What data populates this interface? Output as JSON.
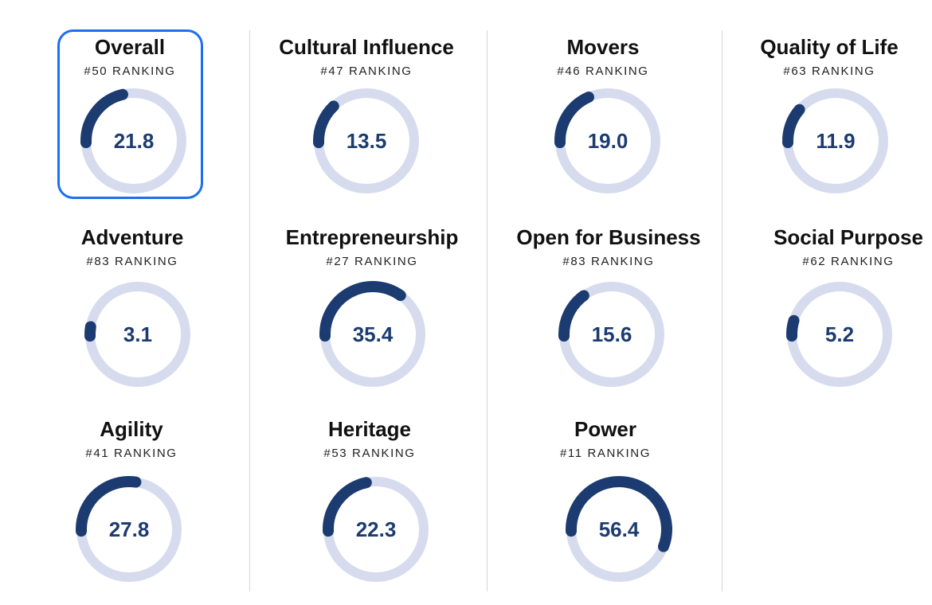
{
  "ranking_suffix": "RANKING",
  "colors": {
    "arc": "#1c3b70",
    "track": "#d6dcee",
    "selected_border": "#1a6ff2"
  },
  "scale_max": 100,
  "selected_card": "Overall",
  "chart_data": [
    {
      "type": "gauge",
      "title": "Overall",
      "rank": "#50 RANKING",
      "value": 21.8,
      "display": "21.8",
      "max": 100
    },
    {
      "type": "gauge",
      "title": "Cultural Influence",
      "rank": "#47 RANKING",
      "value": 13.5,
      "display": "13.5",
      "max": 100
    },
    {
      "type": "gauge",
      "title": "Movers",
      "rank": "#46 RANKING",
      "value": 19.0,
      "display": "19.0",
      "max": 100
    },
    {
      "type": "gauge",
      "title": "Quality of Life",
      "rank": "#63 RANKING",
      "value": 11.9,
      "display": "11.9",
      "max": 100
    },
    {
      "type": "gauge",
      "title": "Adventure",
      "rank": "#83 RANKING",
      "value": 3.1,
      "display": "3.1",
      "max": 100
    },
    {
      "type": "gauge",
      "title": "Entrepreneurship",
      "rank": "#27 RANKING",
      "value": 35.4,
      "display": "35.4",
      "max": 100
    },
    {
      "type": "gauge",
      "title": "Open for Business",
      "rank": "#83 RANKING",
      "value": 15.6,
      "display": "15.6",
      "max": 100
    },
    {
      "type": "gauge",
      "title": "Social Purpose",
      "rank": "#62 RANKING",
      "value": 5.2,
      "display": "5.2",
      "max": 100
    },
    {
      "type": "gauge",
      "title": "Agility",
      "rank": "#41 RANKING",
      "value": 27.8,
      "display": "27.8",
      "max": 100
    },
    {
      "type": "gauge",
      "title": "Heritage",
      "rank": "#53 RANKING",
      "value": 22.3,
      "display": "22.3",
      "max": 100
    },
    {
      "type": "gauge",
      "title": "Power",
      "rank": "#11 RANKING",
      "value": 56.4,
      "display": "56.4",
      "max": 100
    }
  ]
}
